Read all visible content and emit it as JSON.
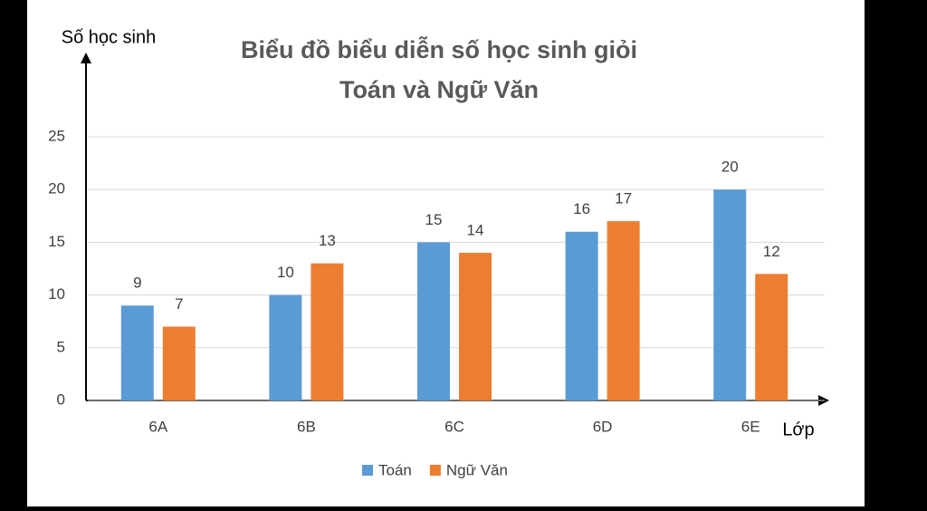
{
  "chart_data": {
    "type": "bar",
    "title": [
      "Biểu đồ biểu diễn số học sinh giỏi",
      "Toán và Ngữ Văn"
    ],
    "y_label": "Số học sinh",
    "x_label": "Lớp",
    "categories": [
      "6A",
      "6B",
      "6C",
      "6D",
      "6E"
    ],
    "series": [
      {
        "name": "Toán",
        "color": "#5b9bd5",
        "values": [
          9,
          10,
          15,
          16,
          20
        ]
      },
      {
        "name": "Ngữ Văn",
        "color": "#ed7d31",
        "values": [
          7,
          13,
          14,
          17,
          12
        ]
      }
    ],
    "ylim": [
      0,
      25
    ],
    "yticks": [
      0,
      5,
      10,
      15,
      20,
      25
    ],
    "grid": true,
    "legend": "bottom"
  }
}
